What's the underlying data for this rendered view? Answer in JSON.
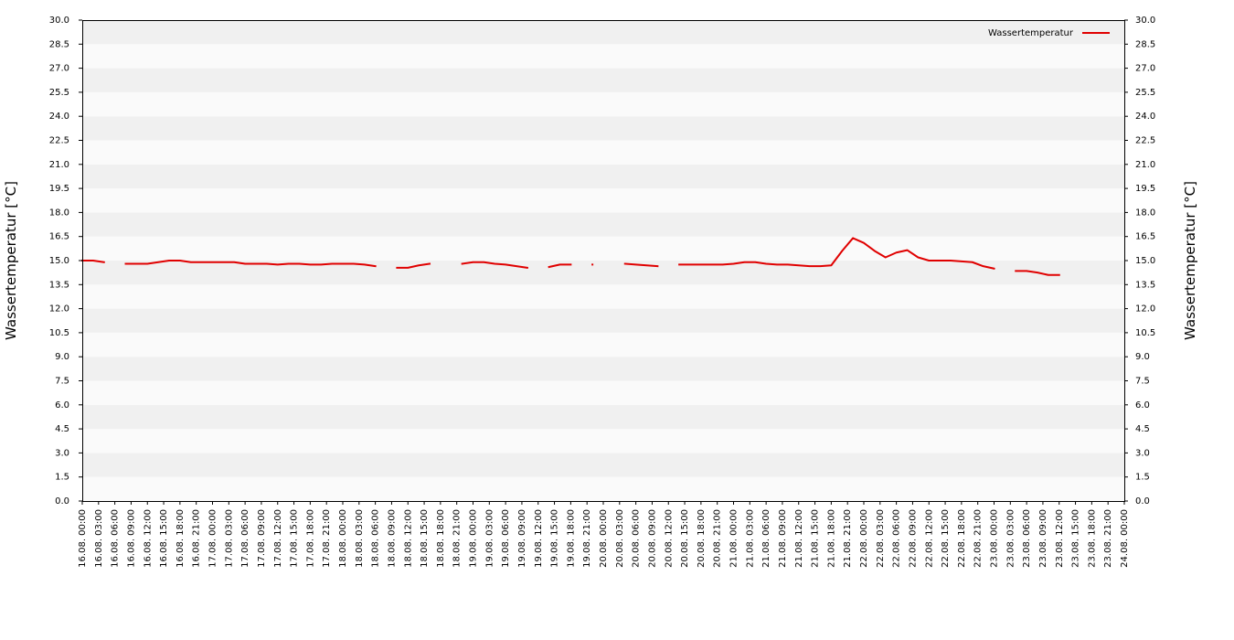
{
  "chart_data": {
    "type": "line",
    "y_label": "Wassertemperatur [°C]",
    "y2_label": "Wassertemperatur [°C]",
    "legend": "upper right",
    "grid": true,
    "ylim": [
      0,
      30
    ],
    "y2lim": [
      0,
      30
    ],
    "yticks": [
      {
        "value": 0,
        "label": "0.0"
      },
      1.5,
      {
        "value": 3,
        "label": "3.0"
      },
      4.5,
      {
        "value": 6,
        "label": "6.0"
      },
      7.5,
      {
        "value": 9,
        "label": "9.0"
      },
      10.5,
      {
        "value": 12,
        "label": "12.0"
      },
      13.5,
      {
        "value": 15,
        "label": "15.0"
      },
      16.5,
      {
        "value": 18,
        "label": "18.0"
      },
      19.5,
      {
        "value": 21,
        "label": "21.0"
      },
      22.5,
      {
        "value": 24,
        "label": "24.0"
      },
      25.5,
      {
        "value": 27,
        "label": "27.0"
      },
      28.5,
      {
        "value": 30,
        "label": "30.0"
      }
    ],
    "y2ticks": [
      {
        "value": 0,
        "label": "0.0"
      },
      1.5,
      {
        "value": 3,
        "label": "3.0"
      },
      4.5,
      {
        "value": 6,
        "label": "6.0"
      },
      7.5,
      {
        "value": 9,
        "label": "9.0"
      },
      10.5,
      {
        "value": 12,
        "label": "12.0"
      },
      13.5,
      {
        "value": 15,
        "label": "15.0"
      },
      16.5,
      {
        "value": 18,
        "label": "18.0"
      },
      19.5,
      {
        "value": 21,
        "label": "21.0"
      },
      22.5,
      {
        "value": 24,
        "label": "24.0"
      },
      25.5,
      {
        "value": 27,
        "label": "27.0"
      },
      28.5,
      {
        "value": 30,
        "label": "30.0"
      }
    ],
    "xlim": [
      "16.08. 00:00",
      "24.08. 00:00"
    ],
    "xticks": [
      "16.08. 00:00",
      "16.08. 03:00",
      "16.08. 06:00",
      "16.08. 09:00",
      "16.08. 12:00",
      "16.08. 15:00",
      "16.08. 18:00",
      "16.08. 21:00",
      "17.08. 00:00",
      "17.08. 03:00",
      "17.08. 06:00",
      "17.08. 09:00",
      "17.08. 12:00",
      "17.08. 15:00",
      "17.08. 18:00",
      "17.08. 21:00",
      "18.08. 00:00",
      "18.08. 03:00",
      "18.08. 06:00",
      "18.08. 09:00",
      "18.08. 12:00",
      "18.08. 15:00",
      "18.08. 18:00",
      "18.08. 21:00",
      "19.08. 00:00",
      "19.08. 03:00",
      "19.08. 06:00",
      "19.08. 09:00",
      "19.08. 12:00",
      "19.08. 15:00",
      "19.08. 18:00",
      "19.08. 21:00",
      "20.08. 00:00",
      "20.08. 03:00",
      "20.08. 06:00",
      "20.08. 09:00",
      "20.08. 12:00",
      "20.08. 15:00",
      "20.08. 18:00",
      "20.08. 21:00",
      "21.08. 00:00",
      "21.08. 03:00",
      "21.08. 06:00",
      "21.08. 09:00",
      "21.08. 12:00",
      "21.08. 15:00",
      "21.08. 18:00",
      "21.08. 21:00",
      "22.08. 00:00",
      "22.08. 03:00",
      "22.08. 06:00",
      "22.08. 09:00",
      "22.08. 12:00",
      "22.08. 15:00",
      "22.08. 18:00",
      "22.08. 21:00",
      "23.08. 00:00",
      "23.08. 03:00",
      "23.08. 06:00",
      "23.08. 09:00",
      "23.08. 12:00",
      "23.08. 15:00",
      "23.08. 18:00",
      "23.08. 21:00",
      "24.08. 00:00"
    ],
    "x": [
      "16.08. 00:00",
      "16.08. 02:00",
      "16.08. 04:00",
      "16.08. 06:00",
      "16.08. 08:00",
      "16.08. 10:00",
      "16.08. 12:00",
      "16.08. 14:00",
      "16.08. 16:00",
      "16.08. 18:00",
      "16.08. 20:00",
      "16.08. 22:00",
      "17.08. 00:00",
      "17.08. 02:00",
      "17.08. 04:00",
      "17.08. 06:00",
      "17.08. 08:00",
      "17.08. 10:00",
      "17.08. 12:00",
      "17.08. 14:00",
      "17.08. 16:00",
      "17.08. 18:00",
      "17.08. 20:00",
      "17.08. 22:00",
      "18.08. 00:00",
      "18.08. 02:00",
      "18.08. 04:00",
      "18.08. 06:00",
      "18.08. 08:00",
      "18.08. 10:00",
      "18.08. 12:00",
      "18.08. 14:00",
      "18.08. 16:00",
      "18.08. 18:00",
      "18.08. 20:00",
      "18.08. 22:00",
      "19.08. 00:00",
      "19.08. 02:00",
      "19.08. 04:00",
      "19.08. 06:00",
      "19.08. 08:00",
      "19.08. 10:00",
      "19.08. 12:00",
      "19.08. 14:00",
      "19.08. 16:00",
      "19.08. 18:00",
      "19.08. 20:00",
      "19.08. 22:00",
      "20.08. 00:00",
      "20.08. 02:00",
      "20.08. 04:00",
      "20.08. 06:00",
      "20.08. 08:00",
      "20.08. 10:00",
      "20.08. 12:00",
      "20.08. 14:00",
      "20.08. 16:00",
      "20.08. 18:00",
      "20.08. 20:00",
      "20.08. 22:00",
      "21.08. 00:00",
      "21.08. 02:00",
      "21.08. 04:00",
      "21.08. 06:00",
      "21.08. 08:00",
      "21.08. 10:00",
      "21.08. 12:00",
      "21.08. 14:00",
      "21.08. 16:00",
      "21.08. 18:00",
      "21.08. 20:00",
      "21.08. 22:00",
      "22.08. 00:00",
      "22.08. 02:00",
      "22.08. 04:00",
      "22.08. 06:00",
      "22.08. 08:00",
      "22.08. 10:00",
      "22.08. 12:00",
      "22.08. 14:00",
      "22.08. 16:00",
      "22.08. 18:00",
      "22.08. 20:00",
      "22.08. 22:00",
      "23.08. 00:00",
      "23.08. 02:00",
      "23.08. 04:00",
      "23.08. 06:00",
      "23.08. 08:00",
      "23.08. 10:00",
      "23.08. 12:00"
    ],
    "series": [
      {
        "name": "Wassertemperatur",
        "color": "#e00000",
        "values": [
          15.0,
          15.0,
          14.9,
          null,
          14.8,
          14.8,
          14.8,
          14.9,
          15.0,
          15.0,
          14.9,
          14.9,
          14.9,
          14.9,
          14.9,
          14.8,
          14.8,
          14.8,
          14.75,
          14.8,
          14.8,
          14.75,
          14.75,
          14.8,
          14.8,
          14.8,
          14.75,
          14.65,
          null,
          14.55,
          14.55,
          14.7,
          14.8,
          null,
          null,
          14.8,
          14.9,
          14.9,
          14.8,
          14.75,
          14.65,
          14.55,
          null,
          14.6,
          14.75,
          14.75,
          null,
          14.75,
          null,
          null,
          14.8,
          14.75,
          14.7,
          14.65,
          null,
          14.75,
          14.75,
          14.75,
          14.75,
          14.75,
          14.8,
          14.9,
          14.9,
          14.8,
          14.75,
          14.75,
          14.7,
          14.65,
          14.65,
          14.7,
          15.6,
          16.4,
          16.1,
          15.6,
          15.2,
          15.5,
          15.65,
          15.2,
          15.0,
          15.0,
          15.0,
          14.95,
          14.9,
          14.65,
          14.5,
          null,
          14.35,
          14.35,
          14.25,
          14.1,
          14.1
        ]
      }
    ]
  }
}
